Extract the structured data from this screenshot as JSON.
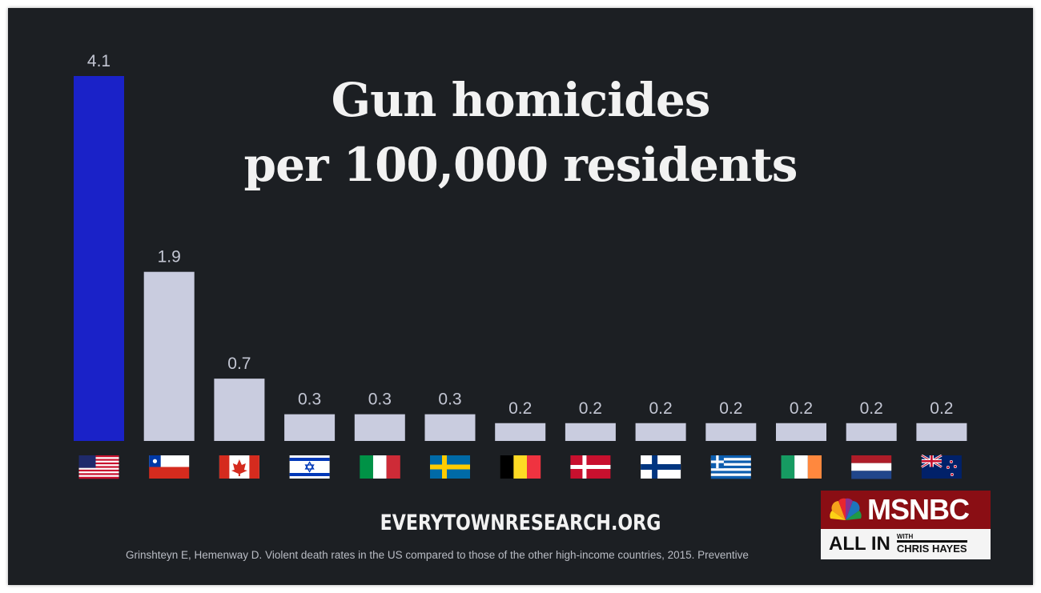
{
  "title_lines": [
    "Gun homicides",
    "per 100,000 residents"
  ],
  "website": "EVERYTOWNRESEARCH.ORG",
  "citation": "Grinshteyn E, Hemenway D. Violent death rates in the US compared to those of the other high-income countries, 2015. Preventive",
  "logo": {
    "network": "MSNBC",
    "show": "ALL IN",
    "with": "WITH",
    "host": "CHRIS HAYES"
  },
  "colors": {
    "background": "#1c1f23",
    "highlight_bar": "#1a22c8",
    "bar": "#c9ccdf",
    "label": "#c3c6d3"
  },
  "chart_data": {
    "type": "bar",
    "title": "Gun homicides per 100,000 residents",
    "categories": [
      "United States",
      "Chile",
      "Canada",
      "Israel",
      "Italy",
      "Sweden",
      "Belgium",
      "Denmark",
      "Finland",
      "Greece",
      "Ireland",
      "Netherlands",
      "New Zealand"
    ],
    "values": [
      4.1,
      1.9,
      0.7,
      0.3,
      0.3,
      0.3,
      0.2,
      0.2,
      0.2,
      0.2,
      0.2,
      0.2,
      0.2
    ],
    "value_labels": [
      "4.1",
      "1.9",
      "0.7",
      "0.3",
      "0.3",
      "0.3",
      "0.2",
      "0.2",
      "0.2",
      "0.2",
      "0.2",
      "0.2",
      "0.2"
    ],
    "flags": [
      "us-flag-icon",
      "chile-flag-icon",
      "canada-flag-icon",
      "israel-flag-icon",
      "italy-flag-icon",
      "sweden-flag-icon",
      "belgium-flag-icon",
      "denmark-flag-icon",
      "finland-flag-icon",
      "greece-flag-icon",
      "ireland-flag-icon",
      "netherlands-flag-icon",
      "new-zealand-flag-icon"
    ],
    "highlight_index": 0,
    "ylim": [
      0,
      4.1
    ],
    "grid": false,
    "legend": "none"
  }
}
